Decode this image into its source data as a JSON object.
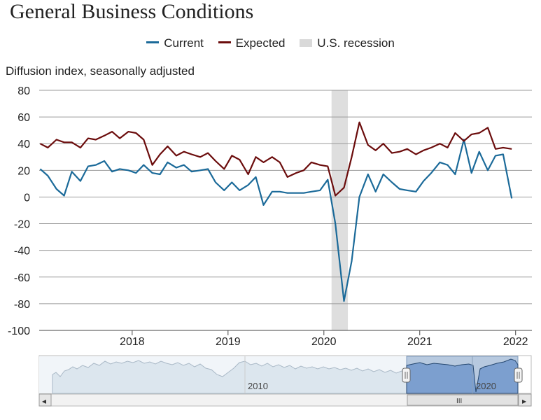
{
  "title": "General Business Conditions",
  "subtitle": "Diffusion index, seasonally adjusted",
  "legend": [
    {
      "label": "Current",
      "color": "#1b6a99"
    },
    {
      "label": "Expected",
      "color": "#6b0c0c"
    },
    {
      "label": "U.S. recession",
      "color": "#d9d9d9"
    }
  ],
  "navigator": {
    "labels": [
      "2010",
      "2020"
    ],
    "handle_glyph": "III",
    "left_arrow": "◂",
    "right_arrow": "▸"
  },
  "chart_data": {
    "type": "line",
    "title": "General Business Conditions",
    "ylabel": "Diffusion index, seasonally adjusted",
    "ylim": [
      -100,
      80
    ],
    "yticks": [
      80,
      60,
      40,
      20,
      0,
      -20,
      -40,
      -60,
      -80,
      -100
    ],
    "xlim": [
      2017.03,
      2022.17
    ],
    "xticks": [
      {
        "value": 2018,
        "label": "2018"
      },
      {
        "value": 2019,
        "label": "2019"
      },
      {
        "value": 2020,
        "label": "2020"
      },
      {
        "value": 2021,
        "label": "2021"
      },
      {
        "value": 2022,
        "label": "2022"
      }
    ],
    "recession": {
      "start": 2020.08,
      "end": 2020.25,
      "label": "U.S. recession"
    },
    "series": [
      {
        "name": "Current",
        "color": "#1b6a99",
        "points": [
          [
            2017.04,
            21
          ],
          [
            2017.12,
            16
          ],
          [
            2017.21,
            6
          ],
          [
            2017.29,
            1
          ],
          [
            2017.37,
            19
          ],
          [
            2017.46,
            12
          ],
          [
            2017.54,
            23
          ],
          [
            2017.62,
            24
          ],
          [
            2017.71,
            27
          ],
          [
            2017.79,
            19
          ],
          [
            2017.87,
            21
          ],
          [
            2017.96,
            20
          ],
          [
            2018.04,
            18
          ],
          [
            2018.12,
            24
          ],
          [
            2018.21,
            18
          ],
          [
            2018.29,
            17
          ],
          [
            2018.37,
            26
          ],
          [
            2018.46,
            22
          ],
          [
            2018.54,
            24
          ],
          [
            2018.62,
            19
          ],
          [
            2018.71,
            20
          ],
          [
            2018.79,
            21
          ],
          [
            2018.87,
            11
          ],
          [
            2018.96,
            5
          ],
          [
            2019.04,
            11
          ],
          [
            2019.12,
            5
          ],
          [
            2019.21,
            9
          ],
          [
            2019.29,
            15
          ],
          [
            2019.37,
            -6
          ],
          [
            2019.46,
            4
          ],
          [
            2019.54,
            4
          ],
          [
            2019.62,
            3
          ],
          [
            2019.71,
            3
          ],
          [
            2019.79,
            3
          ],
          [
            2019.87,
            4
          ],
          [
            2019.96,
            5
          ],
          [
            2020.04,
            13
          ],
          [
            2020.12,
            -20
          ],
          [
            2020.21,
            -78
          ],
          [
            2020.29,
            -48
          ],
          [
            2020.37,
            0
          ],
          [
            2020.46,
            17
          ],
          [
            2020.54,
            4
          ],
          [
            2020.62,
            17
          ],
          [
            2020.71,
            11
          ],
          [
            2020.79,
            6
          ],
          [
            2020.87,
            5
          ],
          [
            2020.96,
            4
          ],
          [
            2021.04,
            12
          ],
          [
            2021.12,
            18
          ],
          [
            2021.21,
            26
          ],
          [
            2021.29,
            24
          ],
          [
            2021.37,
            17
          ],
          [
            2021.46,
            43
          ],
          [
            2021.54,
            18
          ],
          [
            2021.62,
            34
          ],
          [
            2021.71,
            20
          ],
          [
            2021.79,
            31
          ],
          [
            2021.87,
            32
          ],
          [
            2021.96,
            -1
          ]
        ]
      },
      {
        "name": "Expected",
        "color": "#6b0c0c",
        "points": [
          [
            2017.04,
            40
          ],
          [
            2017.12,
            37
          ],
          [
            2017.21,
            43
          ],
          [
            2017.29,
            41
          ],
          [
            2017.37,
            41
          ],
          [
            2017.46,
            37
          ],
          [
            2017.54,
            44
          ],
          [
            2017.62,
            43
          ],
          [
            2017.71,
            46
          ],
          [
            2017.79,
            49
          ],
          [
            2017.87,
            44
          ],
          [
            2017.96,
            49
          ],
          [
            2018.04,
            48
          ],
          [
            2018.12,
            43
          ],
          [
            2018.21,
            24
          ],
          [
            2018.29,
            32
          ],
          [
            2018.37,
            38
          ],
          [
            2018.46,
            31
          ],
          [
            2018.54,
            34
          ],
          [
            2018.62,
            32
          ],
          [
            2018.71,
            30
          ],
          [
            2018.79,
            33
          ],
          [
            2018.87,
            27
          ],
          [
            2018.96,
            21
          ],
          [
            2019.04,
            31
          ],
          [
            2019.12,
            28
          ],
          [
            2019.21,
            17
          ],
          [
            2019.29,
            30
          ],
          [
            2019.37,
            26
          ],
          [
            2019.46,
            30
          ],
          [
            2019.54,
            26
          ],
          [
            2019.62,
            15
          ],
          [
            2019.71,
            18
          ],
          [
            2019.79,
            20
          ],
          [
            2019.87,
            26
          ],
          [
            2019.96,
            24
          ],
          [
            2020.04,
            23
          ],
          [
            2020.12,
            1
          ],
          [
            2020.21,
            7
          ],
          [
            2020.29,
            30
          ],
          [
            2020.37,
            56
          ],
          [
            2020.46,
            39
          ],
          [
            2020.54,
            35
          ],
          [
            2020.62,
            40
          ],
          [
            2020.71,
            33
          ],
          [
            2020.79,
            34
          ],
          [
            2020.87,
            36
          ],
          [
            2020.96,
            32
          ],
          [
            2021.04,
            35
          ],
          [
            2021.12,
            37
          ],
          [
            2021.21,
            40
          ],
          [
            2021.29,
            37
          ],
          [
            2021.37,
            48
          ],
          [
            2021.46,
            42
          ],
          [
            2021.54,
            47
          ],
          [
            2021.62,
            48
          ],
          [
            2021.71,
            52
          ],
          [
            2021.79,
            36
          ],
          [
            2021.87,
            37
          ],
          [
            2021.96,
            36
          ]
        ]
      }
    ]
  }
}
